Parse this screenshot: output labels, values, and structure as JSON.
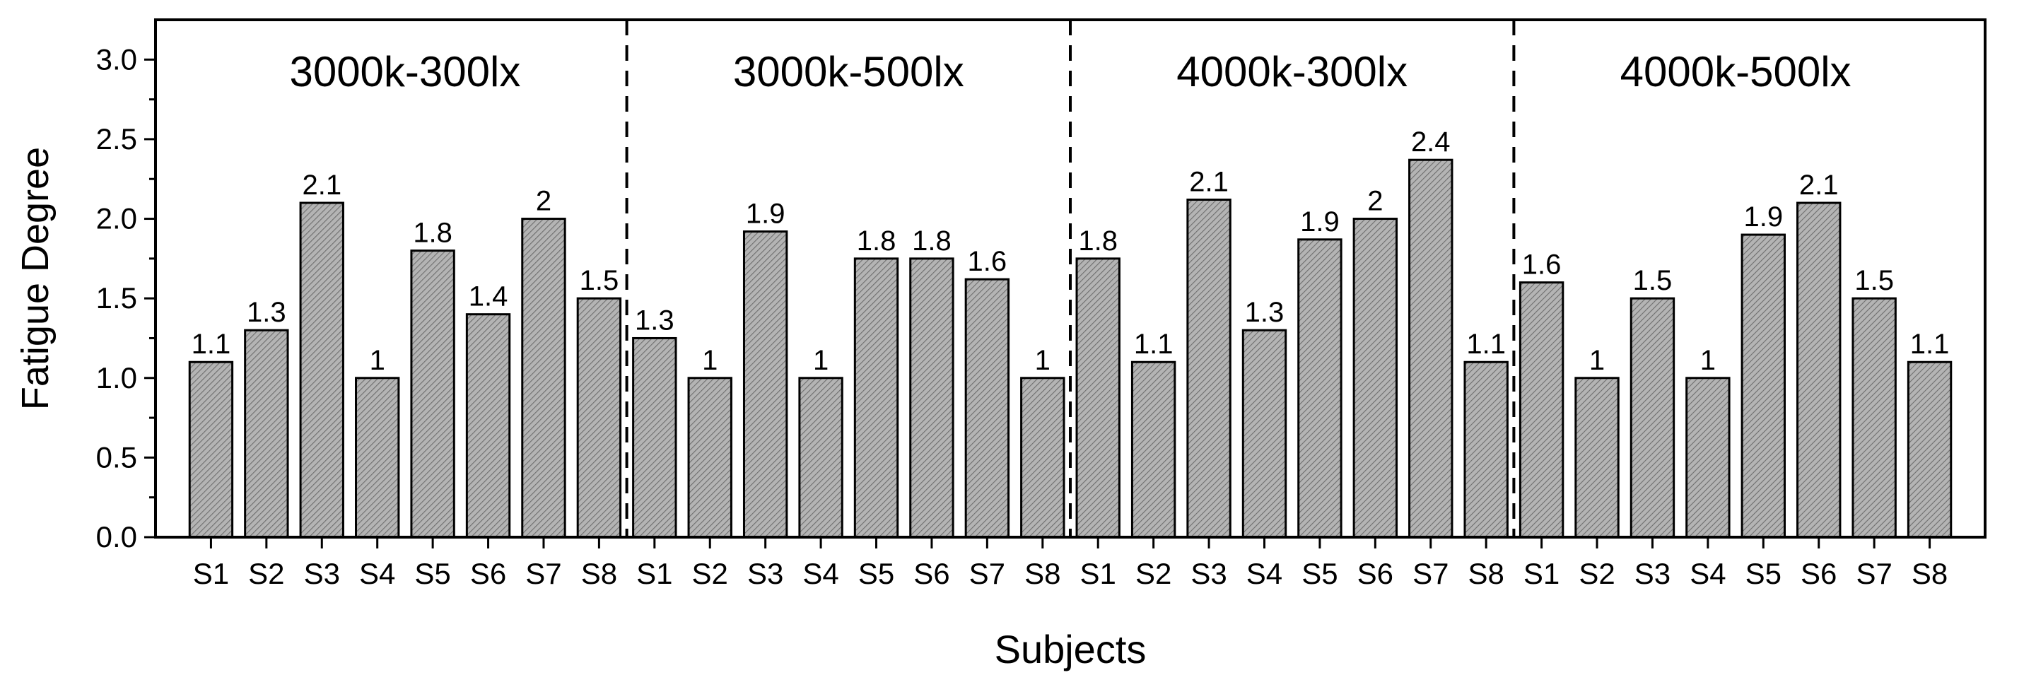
{
  "chart_data": {
    "type": "bar",
    "xlabel": "Subjects",
    "ylabel": "Fatigue Degree",
    "ylim": [
      0,
      3.25
    ],
    "yticks": [
      "0.0",
      "0.5",
      "1.0",
      "1.5",
      "2.0",
      "2.5",
      "3.0"
    ],
    "categories": [
      "S1",
      "S2",
      "S3",
      "S4",
      "S5",
      "S6",
      "S7",
      "S8"
    ],
    "groups": [
      {
        "name": "3000k-300lx",
        "values": [
          1.1,
          1.3,
          2.1,
          1.0,
          1.8,
          1.4,
          2.0,
          1.5
        ],
        "labels": [
          "1.1",
          "1.3",
          "2.1",
          "1",
          "1.8",
          "1.4",
          "2",
          "1.5"
        ]
      },
      {
        "name": "3000k-500lx",
        "values": [
          1.25,
          1.0,
          1.92,
          1.0,
          1.75,
          1.75,
          1.62,
          1.0
        ],
        "labels": [
          "1.3",
          "1",
          "1.9",
          "1",
          "1.8",
          "1.8",
          "1.6",
          "1"
        ]
      },
      {
        "name": "4000k-300lx",
        "values": [
          1.75,
          1.1,
          2.12,
          1.3,
          1.87,
          2.0,
          2.37,
          1.1
        ],
        "labels": [
          "1.8",
          "1.1",
          "2.1",
          "1.3",
          "1.9",
          "2",
          "2.4",
          "1.1"
        ]
      },
      {
        "name": "4000k-500lx",
        "values": [
          1.6,
          1.0,
          1.5,
          1.0,
          1.9,
          2.1,
          1.5,
          1.1
        ],
        "labels": [
          "1.6",
          "1",
          "1.5",
          "1",
          "1.9",
          "2.1",
          "1.5",
          "1.1"
        ]
      }
    ],
    "bar_color": "#a8a8a8",
    "bar_pattern": "diagonal-hatch",
    "legend": "none",
    "grid": false,
    "group_separators": "dashed"
  }
}
